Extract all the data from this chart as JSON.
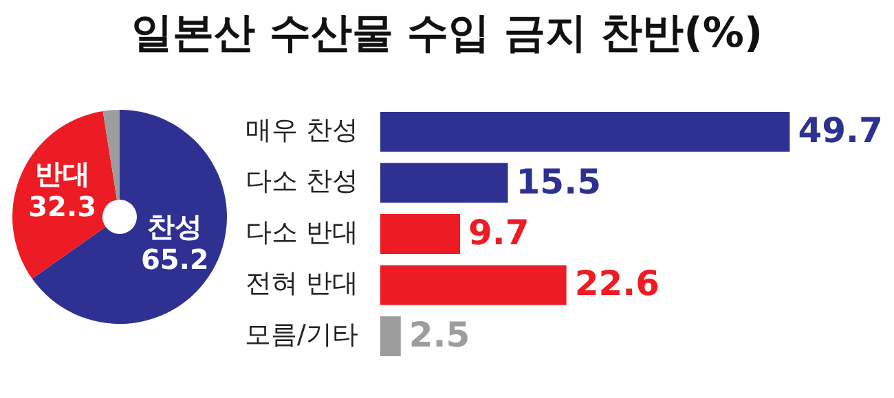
{
  "chart_data": [
    {
      "type": "donut",
      "title": "일본산 수산물 수입 금지 찬반(%)",
      "categories": [
        "찬성",
        "반대",
        null
      ],
      "values": [
        65.2,
        32.3,
        2.5
      ],
      "colors": [
        "#2e3192",
        "#ed1c24",
        "#9d9d9d"
      ],
      "value_labels": [
        "65.2",
        "32.3",
        null
      ],
      "legend": false
    },
    {
      "type": "bar",
      "orientation": "horizontal",
      "categories": [
        "매우 찬성",
        "다소 찬성",
        "다소 반대",
        "전혀 반대",
        "모름/기타"
      ],
      "values": [
        49.7,
        15.5,
        9.7,
        22.6,
        2.5
      ],
      "colors": [
        "#2e3192",
        "#2e3192",
        "#ed1c24",
        "#ed1c24",
        "#9d9d9d"
      ],
      "data_labels": true,
      "legend": false
    }
  ]
}
